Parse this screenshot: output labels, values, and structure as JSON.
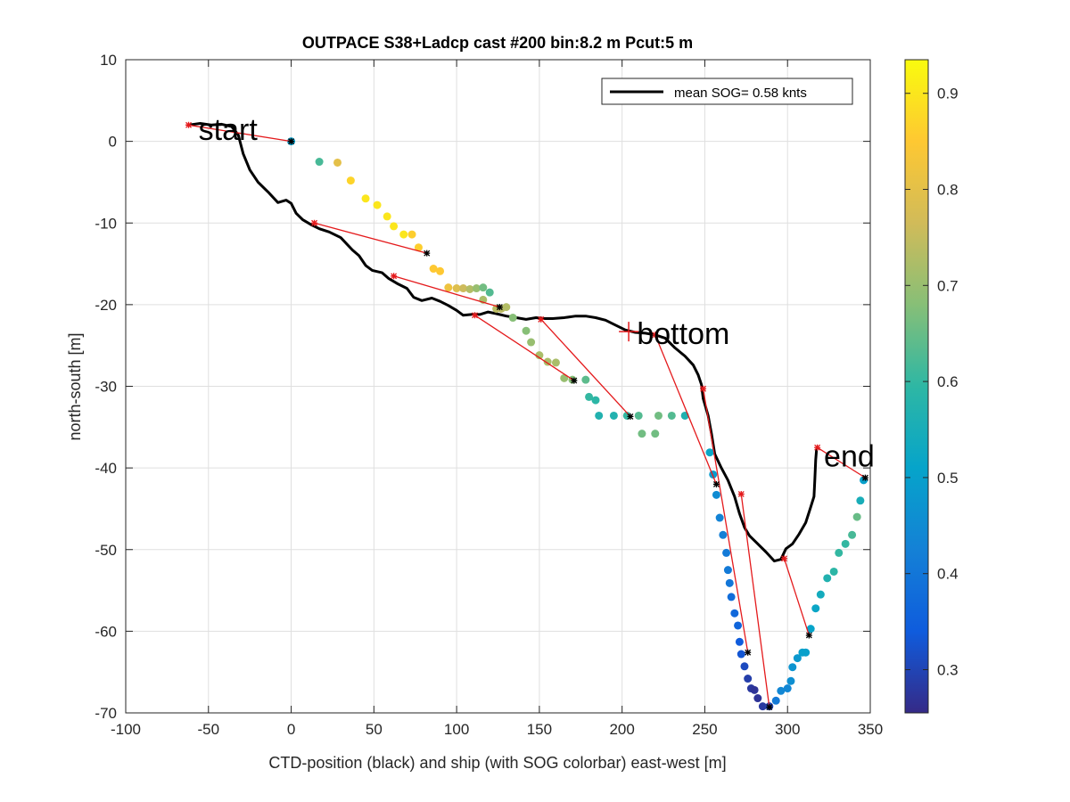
{
  "chart_data": {
    "type": "scatter",
    "title": "OUTPACE S38+Ladcp cast #200 bin:8.2 m  Pcut:5 m",
    "xlabel": "CTD-position (black) and ship (with SOG colorbar) east-west [m]",
    "ylabel": "north-south [m]",
    "xlim": [
      -100,
      350
    ],
    "ylim": [
      -70,
      10
    ],
    "xticks": [
      -100,
      -50,
      0,
      50,
      100,
      150,
      200,
      250,
      300,
      350
    ],
    "yticks": [
      -70,
      -60,
      -50,
      -40,
      -30,
      -20,
      -10,
      0,
      10
    ],
    "grid": true,
    "legend": {
      "position": "top-right",
      "entries": [
        {
          "label": "mean SOG=  0.58 knts",
          "color": "#000000"
        }
      ]
    },
    "colorbar": {
      "label": "",
      "range": [
        0.255,
        0.935
      ],
      "ticks": [
        0.3,
        0.4,
        0.5,
        0.6,
        0.7,
        0.8,
        0.9
      ],
      "colormap": "parula"
    },
    "annotations": [
      {
        "text": "start",
        "x": -56,
        "y": 1.5
      },
      {
        "text": "bottom",
        "x": 209,
        "y": -23.5
      },
      {
        "text": "end",
        "x": 322,
        "y": -38.5
      }
    ],
    "series": [
      {
        "kind": "ctd-track",
        "color": "#000000",
        "points": [
          [
            -62,
            2
          ],
          [
            -55,
            2.2
          ],
          [
            -48,
            2
          ],
          [
            -42,
            2.1
          ],
          [
            -36,
            1.8
          ],
          [
            -32,
            0.8
          ],
          [
            -29,
            -1.5
          ],
          [
            -25,
            -3.5
          ],
          [
            -20,
            -5
          ],
          [
            -14,
            -6.2
          ],
          [
            -8,
            -7.5
          ],
          [
            -3,
            -7.2
          ],
          [
            0,
            -7.6
          ],
          [
            3,
            -8.8
          ],
          [
            7,
            -9.6
          ],
          [
            12,
            -10.2
          ],
          [
            17,
            -10.7
          ],
          [
            23,
            -11.1
          ],
          [
            30,
            -11.8
          ],
          [
            37,
            -13.3
          ],
          [
            41,
            -14
          ],
          [
            45,
            -15.2
          ],
          [
            49,
            -15.8
          ],
          [
            55,
            -16.1
          ],
          [
            59,
            -16.8
          ],
          [
            64,
            -17.4
          ],
          [
            70,
            -18
          ],
          [
            74,
            -19.1
          ],
          [
            79,
            -19.5
          ],
          [
            85,
            -19.2
          ],
          [
            90,
            -19.6
          ],
          [
            95,
            -20.1
          ],
          [
            100,
            -20.7
          ],
          [
            104,
            -21.3
          ],
          [
            109,
            -21.2
          ],
          [
            114,
            -21.2
          ],
          [
            119,
            -20.9
          ],
          [
            124,
            -21.1
          ],
          [
            130,
            -21.4
          ],
          [
            136,
            -21.6
          ],
          [
            142,
            -21.8
          ],
          [
            148,
            -21.6
          ],
          [
            153,
            -21.7
          ],
          [
            158,
            -21.7
          ],
          [
            165,
            -21.6
          ],
          [
            172,
            -21.4
          ],
          [
            178,
            -21.4
          ],
          [
            184,
            -21.6
          ],
          [
            190,
            -21.9
          ],
          [
            196,
            -22.5
          ],
          [
            202,
            -23.1
          ],
          [
            208,
            -23.4
          ],
          [
            214,
            -23.5
          ],
          [
            220,
            -23.7
          ],
          [
            226,
            -24.1
          ],
          [
            232,
            -25.3
          ],
          [
            238,
            -26.3
          ],
          [
            243,
            -27.4
          ],
          [
            246,
            -28.6
          ],
          [
            248,
            -29.8
          ],
          [
            249,
            -31.5
          ],
          [
            252,
            -33.6
          ],
          [
            254,
            -35.8
          ],
          [
            256,
            -38.3
          ],
          [
            260,
            -40
          ],
          [
            264,
            -41.5
          ],
          [
            268,
            -43.5
          ],
          [
            271,
            -45.6
          ],
          [
            274,
            -47.3
          ],
          [
            277,
            -48.3
          ],
          [
            282,
            -49.3
          ],
          [
            287,
            -50.3
          ],
          [
            292,
            -51.4
          ],
          [
            296,
            -51.2
          ],
          [
            299,
            -49.9
          ],
          [
            303,
            -49.3
          ],
          [
            307,
            -48.1
          ],
          [
            311,
            -46.7
          ],
          [
            314,
            -44.8
          ],
          [
            316,
            -43.5
          ],
          [
            316.5,
            -41.5
          ],
          [
            317,
            -39
          ],
          [
            317.5,
            -37.8
          ],
          [
            318,
            -37.5
          ]
        ]
      },
      {
        "kind": "ship-sog",
        "points": [
          [
            0,
            0,
            0.5
          ],
          [
            17,
            -2.5,
            0.62
          ],
          [
            28,
            -2.6,
            0.8
          ],
          [
            36,
            -4.8,
            0.87
          ],
          [
            45,
            -7,
            0.9
          ],
          [
            52,
            -7.8,
            0.9
          ],
          [
            58,
            -9.2,
            0.9
          ],
          [
            62,
            -10.4,
            0.9
          ],
          [
            68,
            -11.4,
            0.9
          ],
          [
            73,
            -11.4,
            0.86
          ],
          [
            77,
            -13,
            0.86
          ],
          [
            86,
            -15.6,
            0.85
          ],
          [
            90,
            -15.9,
            0.85
          ],
          [
            95,
            -17.9,
            0.82
          ],
          [
            100,
            -18,
            0.79
          ],
          [
            104,
            -18,
            0.76
          ],
          [
            108,
            -18.1,
            0.73
          ],
          [
            112,
            -18,
            0.7
          ],
          [
            116,
            -17.9,
            0.66
          ],
          [
            120,
            -18.5,
            0.63
          ],
          [
            116,
            -19.4,
            0.72
          ],
          [
            124,
            -20.5,
            0.74
          ],
          [
            127,
            -20.5,
            0.74
          ],
          [
            130,
            -20.3,
            0.73
          ],
          [
            134,
            -21.6,
            0.68
          ],
          [
            142,
            -23.2,
            0.68
          ],
          [
            145,
            -24.6,
            0.7
          ],
          [
            150,
            -26.2,
            0.72
          ],
          [
            155,
            -27,
            0.72
          ],
          [
            160,
            -27.1,
            0.72
          ],
          [
            165,
            -29,
            0.7
          ],
          [
            170,
            -29.2,
            0.68
          ],
          [
            178,
            -29.2,
            0.64
          ],
          [
            180,
            -31.3,
            0.6
          ],
          [
            184,
            -31.7,
            0.59
          ],
          [
            186,
            -33.6,
            0.57
          ],
          [
            195,
            -33.6,
            0.57
          ],
          [
            203,
            -33.6,
            0.6
          ],
          [
            210,
            -33.6,
            0.63
          ],
          [
            212,
            -35.8,
            0.66
          ],
          [
            220,
            -35.8,
            0.66
          ],
          [
            222,
            -33.6,
            0.66
          ],
          [
            230,
            -33.6,
            0.63
          ],
          [
            238,
            -33.6,
            0.57
          ],
          [
            253,
            -38.1,
            0.52
          ],
          [
            255,
            -40.8,
            0.49
          ],
          [
            257,
            -43.3,
            0.45
          ],
          [
            259,
            -46.1,
            0.43
          ],
          [
            261,
            -48.2,
            0.42
          ],
          [
            263,
            -50.4,
            0.41
          ],
          [
            264,
            -52.5,
            0.41
          ],
          [
            265,
            -54.1,
            0.4
          ],
          [
            266,
            -55.8,
            0.38
          ],
          [
            268,
            -57.8,
            0.37
          ],
          [
            270,
            -59.3,
            0.36
          ],
          [
            271,
            -61.3,
            0.34
          ],
          [
            272,
            -62.8,
            0.33
          ],
          [
            274,
            -64.3,
            0.31
          ],
          [
            276,
            -65.8,
            0.29
          ],
          [
            278,
            -67,
            0.28
          ],
          [
            280,
            -67.2,
            0.27
          ],
          [
            282,
            -68.2,
            0.27
          ],
          [
            285,
            -69.2,
            0.28
          ],
          [
            289,
            -69.2,
            0.3
          ],
          [
            293,
            -68.5,
            0.41
          ],
          [
            296,
            -67.3,
            0.44
          ],
          [
            300,
            -67,
            0.44
          ],
          [
            302,
            -66.1,
            0.46
          ],
          [
            303,
            -64.4,
            0.47
          ],
          [
            306,
            -63.3,
            0.48
          ],
          [
            309,
            -62.6,
            0.5
          ],
          [
            311,
            -62.6,
            0.5
          ],
          [
            314,
            -59.7,
            0.51
          ],
          [
            317,
            -57.2,
            0.52
          ],
          [
            320,
            -55.5,
            0.54
          ],
          [
            324,
            -53.5,
            0.57
          ],
          [
            328,
            -52.7,
            0.59
          ],
          [
            331,
            -50.4,
            0.6
          ],
          [
            335,
            -49.3,
            0.6
          ],
          [
            339,
            -48.2,
            0.62
          ],
          [
            342,
            -46,
            0.65
          ],
          [
            344,
            -44,
            0.55
          ],
          [
            346,
            -41.5,
            0.5
          ]
        ]
      },
      {
        "kind": "red-connectors",
        "color": "#e41a1c",
        "segments": [
          [
            [
              -62,
              2
            ],
            [
              0,
              0
            ]
          ],
          [
            [
              14,
              -10
            ],
            [
              82,
              -13.7
            ]
          ],
          [
            [
              62,
              -16.5
            ],
            [
              126,
              -20.3
            ]
          ],
          [
            [
              111,
              -21.3
            ],
            [
              171,
              -29.3
            ]
          ],
          [
            [
              151,
              -21.8
            ],
            [
              205,
              -33.7
            ]
          ],
          [
            [
              220,
              -23.7
            ],
            [
              257,
              -42
            ]
          ],
          [
            [
              249,
              -30.3
            ],
            [
              276,
              -62.6
            ]
          ],
          [
            [
              272,
              -43.2
            ],
            [
              289,
              -69.3
            ]
          ],
          [
            [
              298,
              -51.1
            ],
            [
              313,
              -60.5
            ]
          ],
          [
            [
              318,
              -37.5
            ],
            [
              347,
              -41.2
            ]
          ]
        ]
      }
    ],
    "markers": {
      "ship_black_points": [
        [
          82,
          -13.7
        ],
        [
          126,
          -20.3
        ],
        [
          171,
          -29.3
        ],
        [
          205,
          -33.7
        ],
        [
          257,
          -42
        ],
        [
          276,
          -62.6
        ],
        [
          289,
          -69.3
        ],
        [
          313,
          -60.5
        ],
        [
          347,
          -41.2
        ],
        [
          0,
          0
        ]
      ],
      "ctd_red_points": [
        [
          -62,
          2
        ],
        [
          14,
          -10
        ],
        [
          62,
          -16.5
        ],
        [
          111,
          -21.3
        ],
        [
          151,
          -21.8
        ],
        [
          220,
          -23.7
        ],
        [
          249,
          -30.3
        ],
        [
          272,
          -43.2
        ],
        [
          298,
          -51.1
        ],
        [
          318,
          -37.5
        ]
      ],
      "bottom_marker": [
        204,
        -23.3
      ]
    }
  }
}
